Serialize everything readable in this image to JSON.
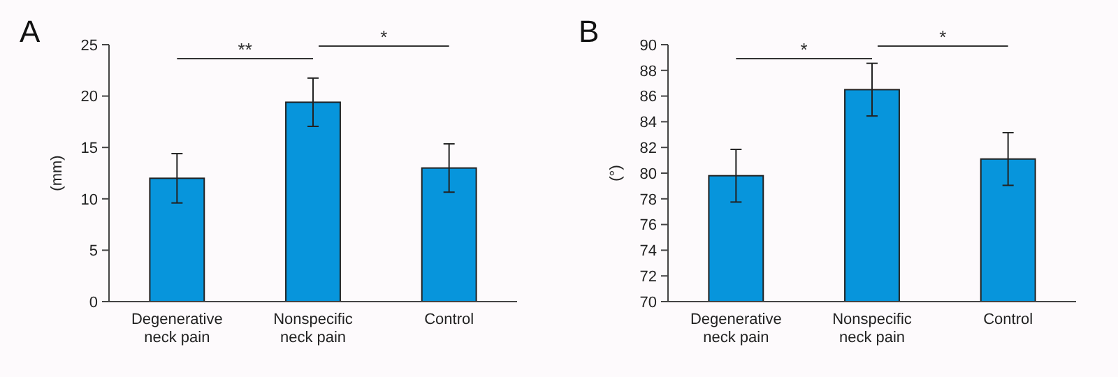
{
  "chart_data": [
    {
      "type": "bar",
      "title": "A",
      "ylabel": "(mm)",
      "categories": [
        "Degenerative\nneck pain",
        "Nonspecific\nneck pain",
        "Control"
      ],
      "series": [
        {
          "color": "#0795dc",
          "values": [
            12.0,
            19.4,
            13.0
          ],
          "errors": [
            2.4,
            2.35,
            2.35
          ]
        }
      ],
      "ylim": [
        0,
        25
      ],
      "yticks": [
        0,
        5,
        10,
        15,
        20,
        25
      ],
      "grid": false,
      "annotations": [
        "**",
        "*"
      ]
    },
    {
      "type": "bar",
      "title": "B",
      "ylabel": "(°)",
      "categories": [
        "Degenerative\nneck pain",
        "Nonspecific\nneck pain",
        "Control"
      ],
      "series": [
        {
          "color": "#0795dc",
          "values": [
            79.8,
            86.5,
            81.1
          ],
          "errors": [
            2.05,
            2.05,
            2.05
          ]
        }
      ],
      "ylim": [
        70,
        90
      ],
      "yticks": [
        70,
        72,
        74,
        76,
        78,
        80,
        82,
        84,
        86,
        88,
        90
      ],
      "grid": false,
      "annotations": [
        "*",
        "*"
      ]
    }
  ]
}
